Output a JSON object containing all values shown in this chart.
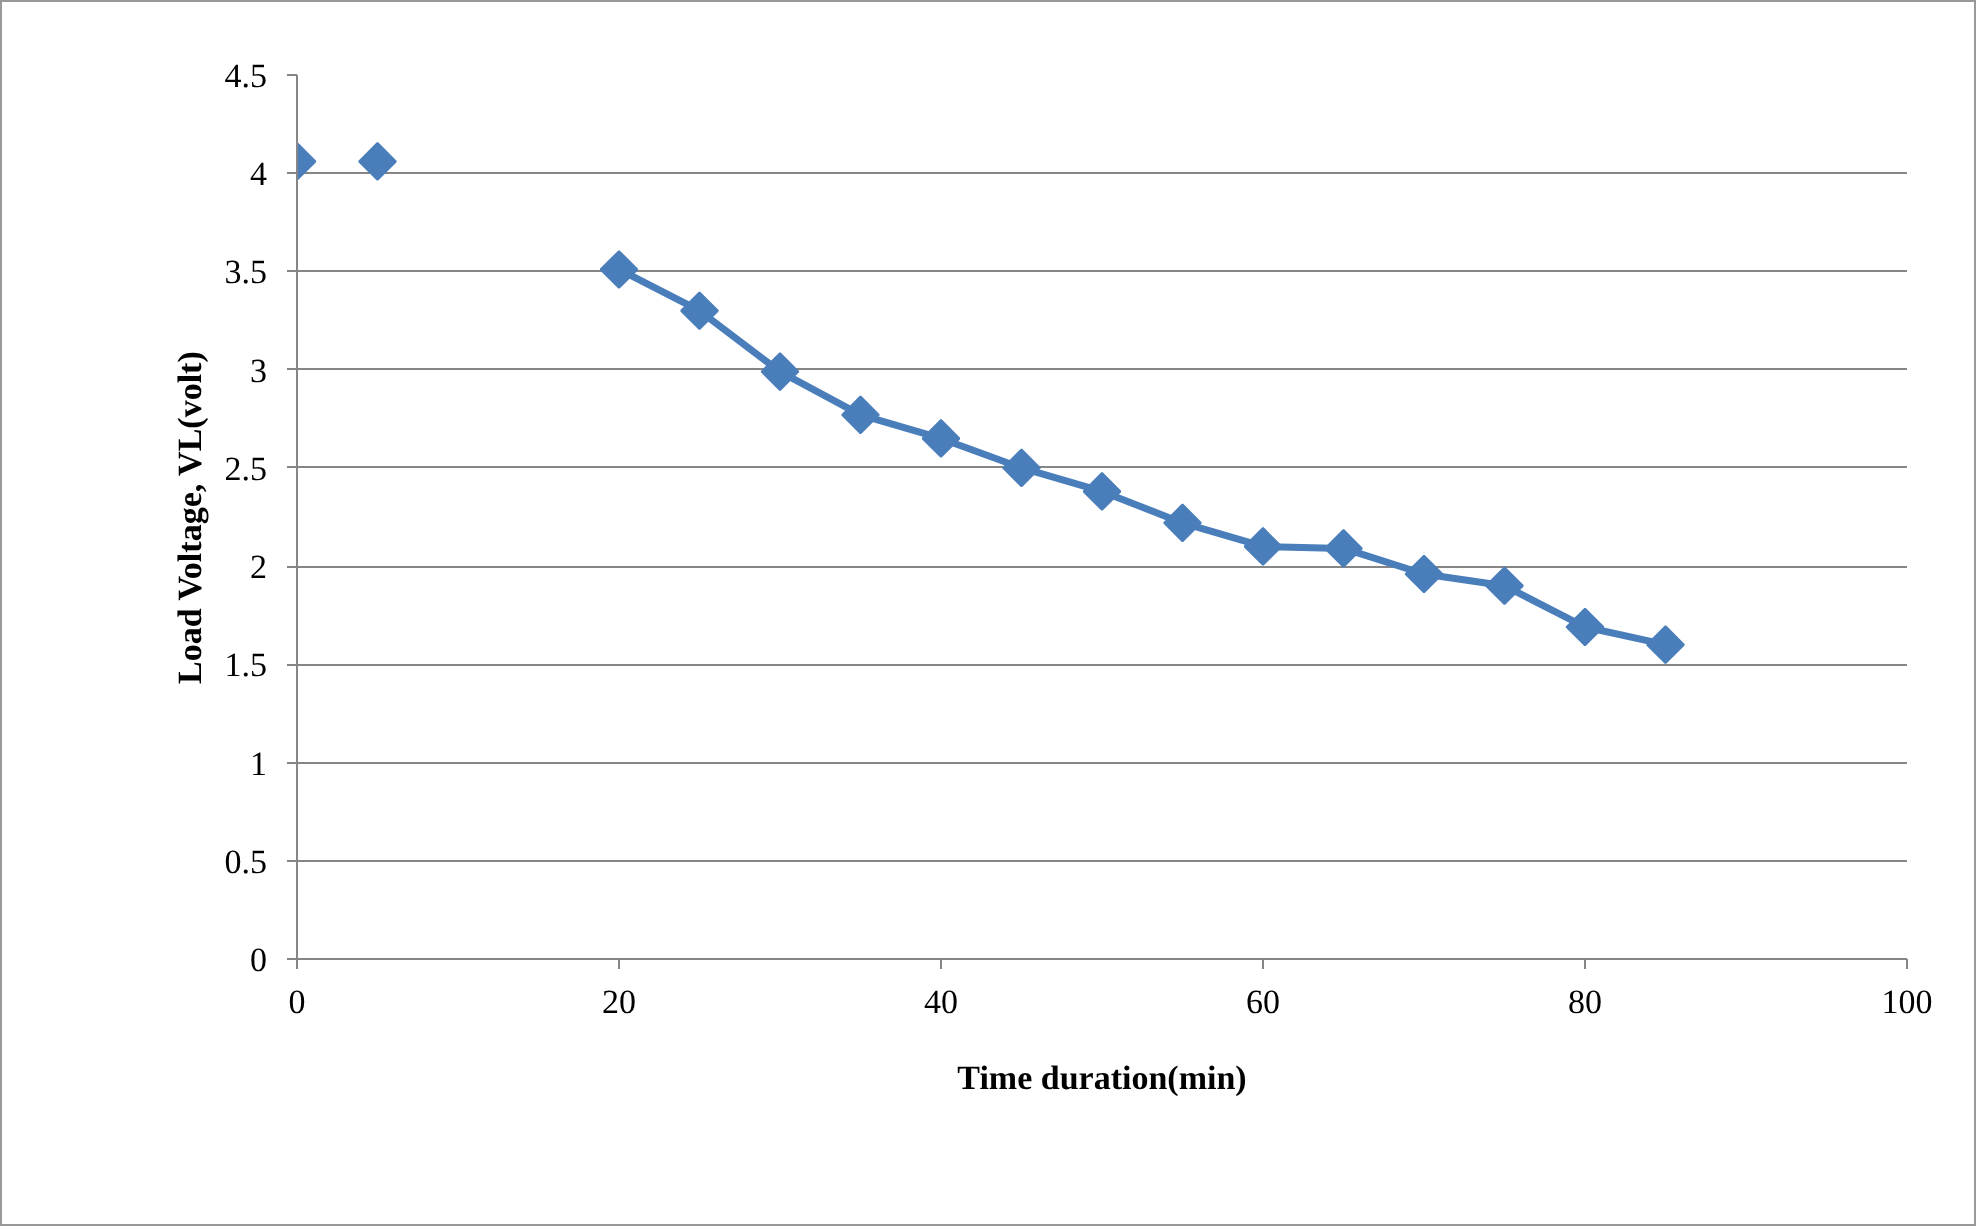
{
  "chart_data": {
    "type": "line",
    "xlabel": "Time duration(min)",
    "ylabel": "Load Voltage, VL(volt)",
    "series": [
      {
        "type": "scatter",
        "color": "#4a7ebb",
        "x": [
          0,
          5
        ],
        "values": [
          4.06,
          4.06
        ]
      },
      {
        "color": "#4a7ebb",
        "x": [
          20,
          25,
          30,
          35,
          40,
          45,
          50,
          55,
          60,
          65,
          70,
          75,
          80,
          85
        ],
        "values": [
          3.51,
          3.3,
          2.99,
          2.77,
          2.65,
          2.5,
          2.38,
          2.22,
          2.1,
          2.09,
          1.96,
          1.9,
          1.69,
          1.6
        ]
      }
    ],
    "xlim": [
      0,
      100
    ],
    "xticks": [
      0,
      20,
      40,
      60,
      80,
      100
    ],
    "ylim": [
      0,
      4.5
    ],
    "yticks": [
      0,
      0.5,
      1,
      1.5,
      2,
      2.5,
      3,
      3.5,
      4,
      4.5
    ],
    "grid": "y",
    "marker": "diamond",
    "line_style": "solid"
  }
}
